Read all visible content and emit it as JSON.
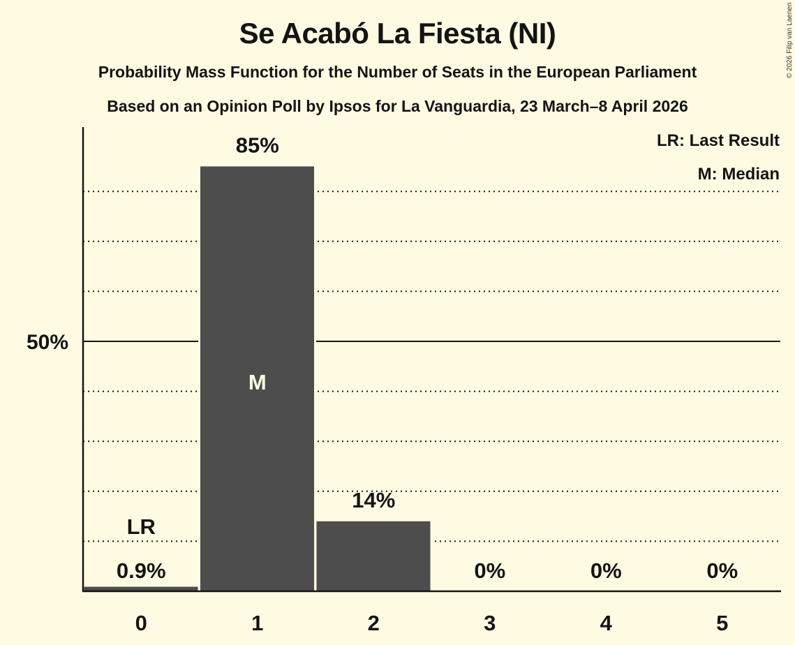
{
  "header": {
    "title": "Se Acabó La Fiesta (NI)",
    "subtitle1": "Probability Mass Function for the Number of Seats in the European Parliament",
    "subtitle2": "Based on an Opinion Poll by Ipsos for La Vanguardia, 23 March–8 April 2026",
    "copyright": "© 2026 Filip van Laenen"
  },
  "legend": {
    "lr": "LR: Last Result",
    "m": "M: Median"
  },
  "colors": {
    "background": "#fffbe3",
    "bar": "#4d4d4d",
    "text": "#141414"
  },
  "chart_data": {
    "type": "bar",
    "title": "Se Acabó La Fiesta (NI)",
    "subtitle": "Probability Mass Function for the Number of Seats in the European Parliament",
    "xlabel": "",
    "ylabel": "",
    "categories": [
      "0",
      "1",
      "2",
      "3",
      "4",
      "5"
    ],
    "values": [
      0.9,
      85,
      14,
      0,
      0,
      0
    ],
    "value_labels": [
      "0.9%",
      "85%",
      "14%",
      "0%",
      "0%",
      "0%"
    ],
    "ylim": [
      0,
      100
    ],
    "y_ticks": [
      {
        "value": 50,
        "label": "50%"
      }
    ],
    "gridlines_dotted": [
      10,
      20,
      30,
      40,
      60,
      70,
      80
    ],
    "gridline_solid": 50,
    "annotations": [
      {
        "category": "0",
        "label": "LR",
        "meaning": "Last Result"
      },
      {
        "category": "1",
        "label": "M",
        "meaning": "Median"
      }
    ],
    "legend_position": "top-right"
  }
}
